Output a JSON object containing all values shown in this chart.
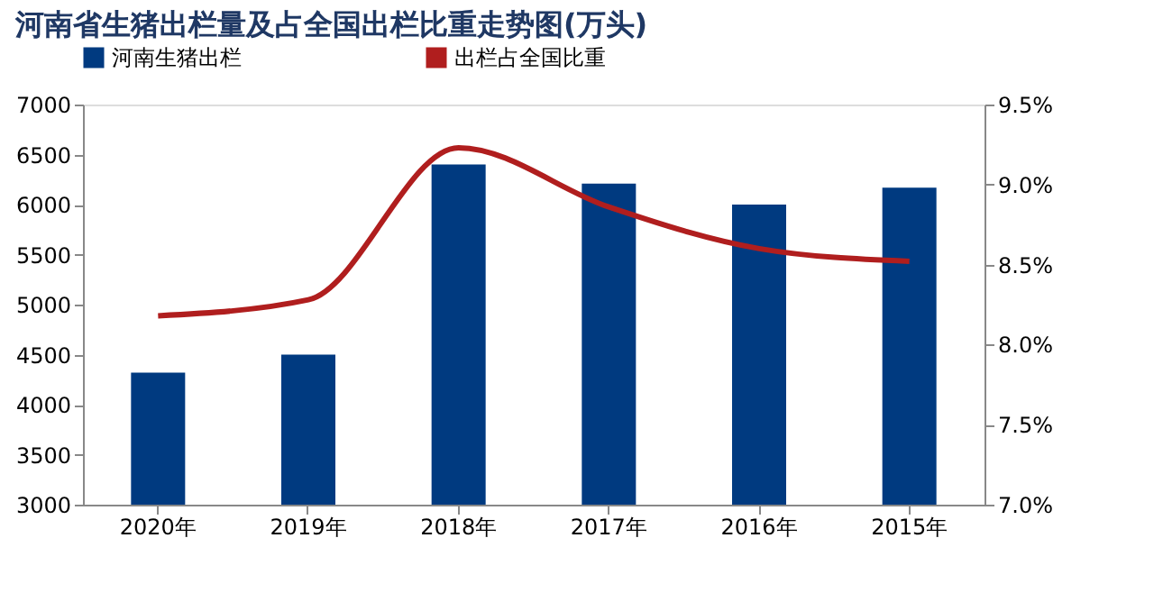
{
  "chart_data": {
    "type": "bar",
    "title": "河南省生猪出栏量及占全国出栏比重走势图(万头)",
    "categories": [
      "2020年",
      "2019年",
      "2018年",
      "2017年",
      "2016年",
      "2015年"
    ],
    "series": [
      {
        "name": "河南生猪出栏",
        "color": "#003a80",
        "values": [
          4320,
          4500,
          6400,
          6210,
          6000,
          6170
        ]
      },
      {
        "name": "出栏占全国比重",
        "type": "line",
        "axis": "y2",
        "color": "#b01e1e",
        "values": [
          8.18,
          8.28,
          9.23,
          8.86,
          8.6,
          8.52
        ]
      }
    ],
    "ylim": [
      3000,
      7000
    ],
    "yticks": [
      3000,
      3500,
      4000,
      4500,
      5000,
      5500,
      6000,
      6500,
      7000
    ],
    "y2lim": [
      7.0,
      9.5
    ],
    "y2ticks": [
      {
        "value": 7.0,
        "label": "7.0%"
      },
      {
        "value": 7.5,
        "label": "7.5%"
      },
      {
        "value": 8.0,
        "label": "8.0%"
      },
      {
        "value": 8.5,
        "label": "8.5%"
      },
      {
        "value": 9.0,
        "label": "9.0%"
      },
      {
        "value": 9.5,
        "label": "9.5%"
      }
    ],
    "legend": "top",
    "grid": false,
    "line_style": "solid",
    "marker": "none"
  }
}
